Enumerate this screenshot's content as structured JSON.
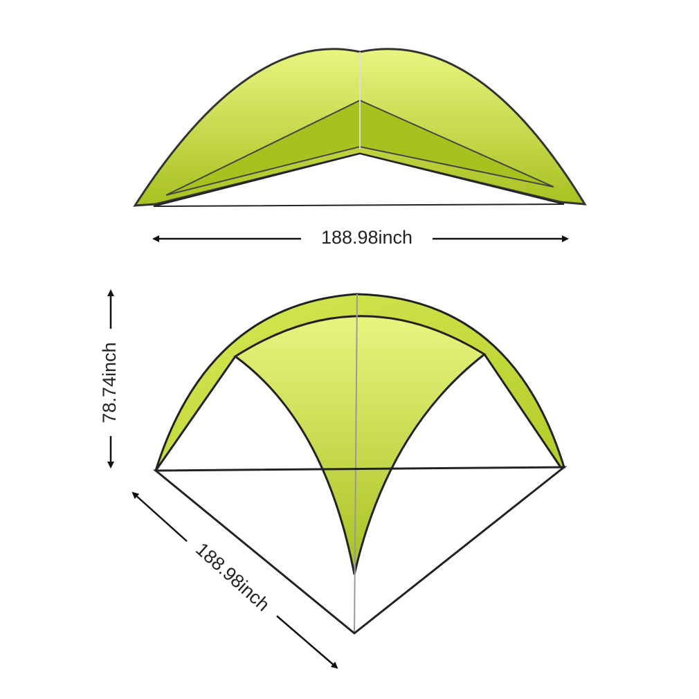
{
  "dimensions": {
    "top_width": "188.98inch",
    "height": "78.74inch",
    "side_width": "188.98inch"
  }
}
